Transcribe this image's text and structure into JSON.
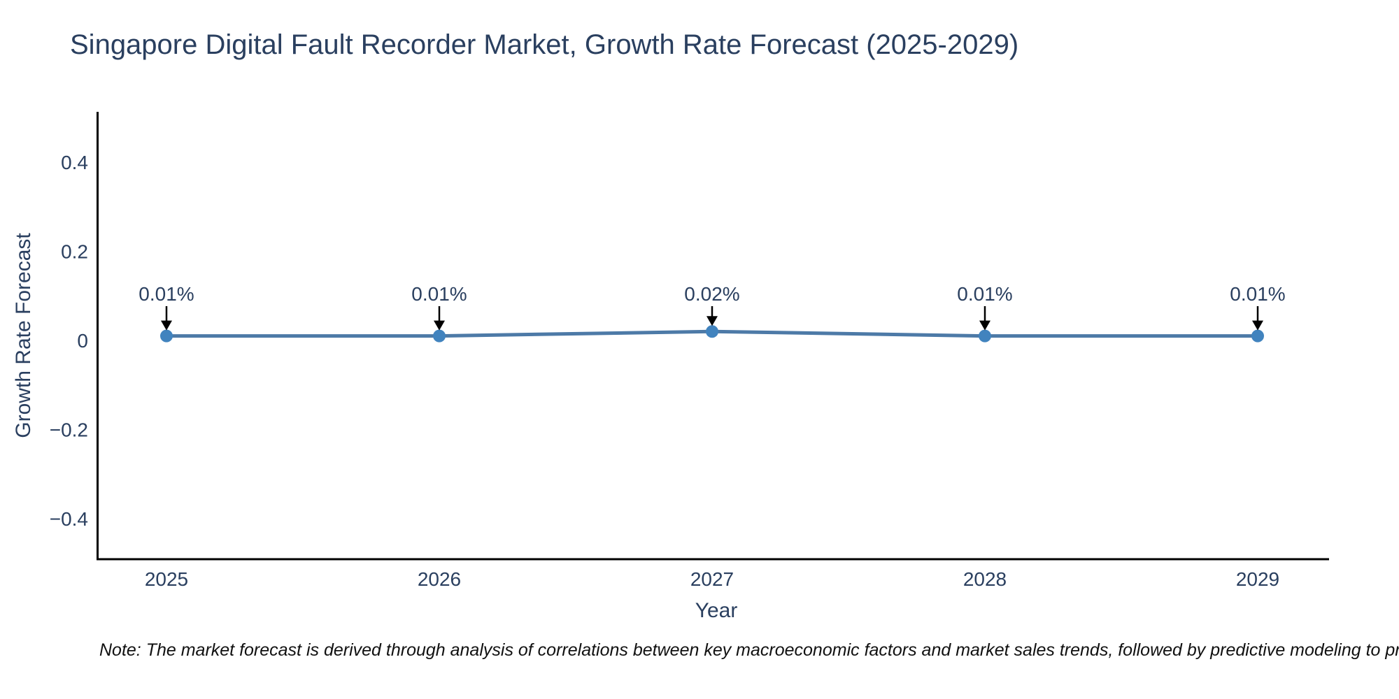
{
  "chart_data": {
    "type": "line",
    "title": "Singapore Digital Fault Recorder Market, Growth Rate Forecast (2025-2029)",
    "xlabel": "Year",
    "ylabel": "Growth Rate Forecast",
    "x": [
      2025,
      2026,
      2027,
      2028,
      2029
    ],
    "x_tick_labels": [
      "2025",
      "2026",
      "2027",
      "2028",
      "2029"
    ],
    "series": [
      {
        "name": "Growth Rate Forecast",
        "values": [
          0.01,
          0.01,
          0.02,
          0.01,
          0.01
        ],
        "point_labels": [
          "0.01%",
          "0.01%",
          "0.02%",
          "0.01%",
          "0.01%"
        ]
      }
    ],
    "y_ticks": [
      {
        "value": 0.4,
        "label": "0.4"
      },
      {
        "value": 0.2,
        "label": "0.2"
      },
      {
        "value": 0,
        "label": "0"
      },
      {
        "value": -0.2,
        "label": "−0.2"
      },
      {
        "value": -0.4,
        "label": "−0.4"
      }
    ],
    "ylim": [
      -0.49,
      0.51
    ],
    "grid": false,
    "legend_position": "none",
    "annotation_style": "value labels with downward arrows pointing at each marker",
    "colors": {
      "line": "#4d7aa7",
      "marker": "#4183be",
      "axis": "#000000",
      "text": "#2a3f5f",
      "arrow": "#000000",
      "note_text": "#111111",
      "background": "#ffffff"
    }
  },
  "note": {
    "text": "Note: The market forecast is derived through analysis of correlations between key macroeconomic factors and market sales trends, followed by predictive modeling to project future sa"
  }
}
